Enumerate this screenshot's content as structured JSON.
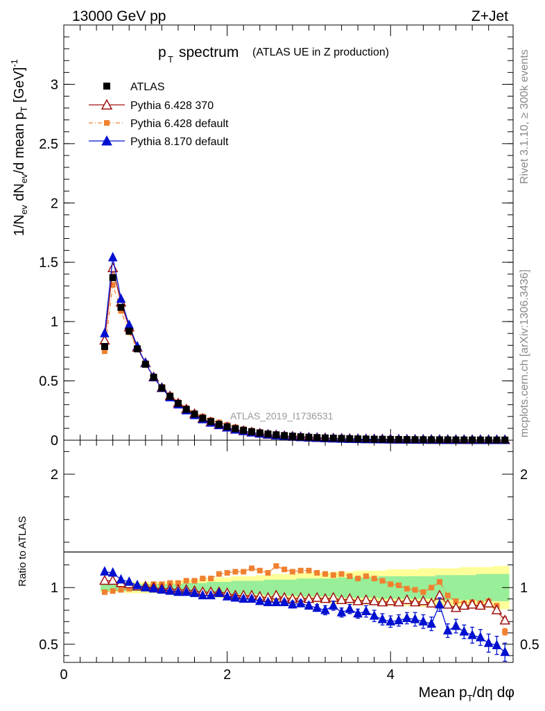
{
  "header": {
    "energy": "13000 GeV pp",
    "process": "Z+Jet"
  },
  "side_texts": {
    "rivet": "Rivet 3.1.10, ≥ 300k events",
    "mcplots": "mcplots.cern.ch [arXiv:1306.3436]"
  },
  "chart_data": [
    {
      "type": "line",
      "panel": "main",
      "title_main": "p",
      "title_sub": "T",
      "title_rest": "spectrum",
      "subtitle": "(ATLAS UE in Z production)",
      "watermark": "ATLAS_2019_I1736531",
      "ylabel": "1/N_ev dN_ev/d mean p_T [GeV]^-1",
      "xlim": [
        0,
        5.5
      ],
      "ylim": [
        0,
        3.5
      ],
      "yticks": [
        "0",
        "0.5",
        "1",
        "1.5",
        "2",
        "2.5",
        "3"
      ],
      "x": [
        0.5,
        0.6,
        0.7,
        0.8,
        0.9,
        1.0,
        1.1,
        1.2,
        1.3,
        1.4,
        1.5,
        1.6,
        1.7,
        1.8,
        1.9,
        2.0,
        2.1,
        2.2,
        2.3,
        2.4,
        2.5,
        2.6,
        2.7,
        2.8,
        2.9,
        3.0,
        3.1,
        3.2,
        3.3,
        3.4,
        3.5,
        3.6,
        3.7,
        3.8,
        3.9,
        4.0,
        4.1,
        4.2,
        4.3,
        4.4,
        4.5,
        4.6,
        4.7,
        4.8,
        4.9,
        5.0,
        5.1,
        5.2,
        5.3,
        5.4
      ],
      "series": [
        {
          "name": "ATLAS",
          "color": "#000000",
          "marker": "square",
          "values": [
            0.79,
            1.37,
            1.12,
            0.92,
            0.77,
            0.64,
            0.53,
            0.44,
            0.37,
            0.31,
            0.26,
            0.22,
            0.185,
            0.157,
            0.133,
            0.113,
            0.097,
            0.083,
            0.071,
            0.061,
            0.052,
            0.045,
            0.039,
            0.034,
            0.029,
            0.025,
            0.022,
            0.019,
            0.017,
            0.015,
            0.013,
            0.011,
            0.0098,
            0.0086,
            0.0076,
            0.0067,
            0.0059,
            0.0052,
            0.0046,
            0.0041,
            0.0036,
            0.0032,
            0.0028,
            0.0025,
            0.0022,
            0.002,
            0.0018,
            0.0016,
            0.0014,
            0.0013
          ]
        },
        {
          "name": "Pythia 6.428 370",
          "color": "#a01010",
          "marker": "triangle-open",
          "values": [
            0.84,
            1.45,
            1.16,
            0.95,
            0.78,
            0.65,
            0.53,
            0.44,
            0.37,
            0.31,
            0.26,
            0.22,
            0.18,
            0.15,
            0.127,
            0.107,
            0.09,
            0.077,
            0.065,
            0.056,
            0.047,
            0.041,
            0.035,
            0.03,
            0.026,
            0.022,
            0.019,
            0.017,
            0.015,
            0.013,
            0.011,
            0.0097,
            0.0085,
            0.0075,
            0.0066,
            0.0058,
            0.0051,
            0.0045,
            0.004,
            0.0036,
            0.0032,
            0.0028,
            0.0025,
            0.0022,
            0.0019,
            0.0017,
            0.0015,
            0.0013,
            0.0012,
            0.0011
          ]
        },
        {
          "name": "Pythia 6.428 default",
          "color": "#f08030",
          "marker": "square-small",
          "dashed": true,
          "values": [
            0.75,
            1.31,
            1.09,
            0.91,
            0.77,
            0.65,
            0.54,
            0.45,
            0.38,
            0.32,
            0.27,
            0.23,
            0.2,
            0.17,
            0.15,
            0.13,
            0.11,
            0.095,
            0.082,
            0.07,
            0.06,
            0.052,
            0.045,
            0.039,
            0.033,
            0.029,
            0.025,
            0.022,
            0.019,
            0.017,
            0.015,
            0.013,
            0.011,
            0.01,
            0.009,
            0.008,
            0.007,
            0.006,
            0.0053,
            0.0047,
            0.0042,
            0.0037,
            0.0033,
            0.0029,
            0.0026,
            0.0023,
            0.002,
            0.0018,
            0.0016,
            0.0014
          ]
        },
        {
          "name": "Pythia 8.170 default",
          "color": "#0010d0",
          "marker": "triangle",
          "values": [
            0.9,
            1.54,
            1.19,
            0.97,
            0.79,
            0.65,
            0.53,
            0.44,
            0.36,
            0.3,
            0.25,
            0.21,
            0.175,
            0.146,
            0.125,
            0.105,
            0.088,
            0.075,
            0.064,
            0.054,
            0.046,
            0.039,
            0.033,
            0.028,
            0.024,
            0.021,
            0.018,
            0.015,
            0.013,
            0.011,
            0.0097,
            0.0085,
            0.0074,
            0.0064,
            0.0055,
            0.0048,
            0.0042,
            0.0037,
            0.0032,
            0.0028,
            0.0024,
            0.0021,
            0.0018,
            0.0016,
            0.0014,
            0.0012,
            0.001,
            0.0009,
            0.0008,
            0.0007
          ]
        }
      ]
    },
    {
      "type": "line",
      "panel": "ratio",
      "ylabel": "Ratio to ATLAS",
      "xlabel": "Mean p_T/dη dφ",
      "xlim": [
        0,
        5.5
      ],
      "ylim": [
        0.34,
        2.3
      ],
      "xticks": [
        "0",
        "2",
        "4"
      ],
      "yticks": [
        "0.5",
        "1",
        "2"
      ],
      "x": [
        0.5,
        0.6,
        0.7,
        0.8,
        0.9,
        1.0,
        1.1,
        1.2,
        1.3,
        1.4,
        1.5,
        1.6,
        1.7,
        1.8,
        1.9,
        2.0,
        2.1,
        2.2,
        2.3,
        2.4,
        2.5,
        2.6,
        2.7,
        2.8,
        2.9,
        3.0,
        3.1,
        3.2,
        3.3,
        3.4,
        3.5,
        3.6,
        3.7,
        3.8,
        3.9,
        4.0,
        4.1,
        4.2,
        4.3,
        4.4,
        4.5,
        4.6,
        4.7,
        4.8,
        4.9,
        5.0,
        5.1,
        5.2,
        5.3,
        5.4
      ],
      "band_inner": [
        0.03,
        0.03,
        0.03,
        0.03,
        0.03,
        0.03,
        0.03,
        0.03,
        0.03,
        0.03,
        0.04,
        0.04,
        0.04,
        0.05,
        0.05,
        0.05,
        0.06,
        0.06,
        0.06,
        0.06,
        0.07,
        0.07,
        0.07,
        0.07,
        0.08,
        0.08,
        0.08,
        0.08,
        0.08,
        0.09,
        0.09,
        0.09,
        0.09,
        0.09,
        0.1,
        0.1,
        0.1,
        0.1,
        0.1,
        0.1,
        0.1,
        0.11,
        0.11,
        0.11,
        0.11,
        0.11,
        0.12,
        0.12,
        0.12,
        0.12
      ],
      "band_outer": [
        0.04,
        0.04,
        0.04,
        0.05,
        0.05,
        0.05,
        0.05,
        0.05,
        0.06,
        0.06,
        0.07,
        0.07,
        0.08,
        0.08,
        0.09,
        0.09,
        0.1,
        0.1,
        0.1,
        0.11,
        0.11,
        0.12,
        0.12,
        0.12,
        0.13,
        0.13,
        0.13,
        0.13,
        0.14,
        0.14,
        0.14,
        0.15,
        0.15,
        0.15,
        0.15,
        0.16,
        0.16,
        0.16,
        0.16,
        0.17,
        0.17,
        0.17,
        0.17,
        0.17,
        0.18,
        0.18,
        0.18,
        0.18,
        0.19,
        0.19
      ],
      "series": [
        {
          "name": "Pythia 6.428 370",
          "color": "#a01010",
          "marker": "triangle-open",
          "values": [
            1.06,
            1.06,
            1.04,
            1.03,
            1.01,
            1.01,
            1.0,
            0.99,
            0.99,
            0.98,
            0.98,
            0.97,
            0.96,
            0.96,
            0.96,
            0.95,
            0.93,
            0.93,
            0.93,
            0.92,
            0.91,
            0.93,
            0.91,
            0.9,
            0.91,
            0.9,
            0.91,
            0.9,
            0.91,
            0.89,
            0.9,
            0.88,
            0.89,
            0.88,
            0.87,
            0.88,
            0.87,
            0.89,
            0.87,
            0.88,
            0.86,
            0.93,
            0.85,
            0.82,
            0.84,
            0.85,
            0.84,
            0.86,
            0.8,
            0.71
          ],
          "errors": [
            0,
            0,
            0,
            0,
            0,
            0,
            0,
            0,
            0,
            0,
            0,
            0,
            0,
            0,
            0,
            0,
            0,
            0,
            0,
            0,
            0,
            0,
            0,
            0,
            0,
            0,
            0,
            0,
            0,
            0,
            0,
            0,
            0,
            0,
            0,
            0,
            0,
            0,
            0,
            0,
            0,
            0,
            0,
            0,
            0,
            0,
            0,
            0,
            0.02,
            0.03
          ]
        },
        {
          "name": "Pythia 6.428 default",
          "color": "#f08030",
          "marker": "square-small",
          "dashed": true,
          "values": [
            0.96,
            0.97,
            0.98,
            0.99,
            1.0,
            1.01,
            1.03,
            1.03,
            1.04,
            1.04,
            1.06,
            1.06,
            1.08,
            1.08,
            1.12,
            1.13,
            1.14,
            1.14,
            1.17,
            1.15,
            1.13,
            1.19,
            1.16,
            1.14,
            1.15,
            1.15,
            1.13,
            1.12,
            1.11,
            1.12,
            1.1,
            1.08,
            1.1,
            1.08,
            1.06,
            1.03,
            1.02,
            0.99,
            0.98,
            0.96,
            1.0,
            1.05,
            0.93,
            0.88,
            0.86,
            0.87,
            0.86,
            0.88,
            0.84,
            0.61
          ],
          "errors": [
            0,
            0,
            0,
            0,
            0,
            0,
            0,
            0,
            0,
            0,
            0,
            0,
            0,
            0,
            0,
            0,
            0,
            0,
            0,
            0,
            0,
            0,
            0,
            0,
            0,
            0,
            0,
            0,
            0,
            0,
            0,
            0,
            0,
            0,
            0,
            0,
            0,
            0,
            0,
            0,
            0,
            0,
            0,
            0,
            0,
            0,
            0,
            0,
            0.02,
            0.03
          ]
        },
        {
          "name": "Pythia 8.170 default",
          "color": "#0010d0",
          "marker": "triangle",
          "values": [
            1.14,
            1.13,
            1.07,
            1.05,
            1.02,
            1.0,
            0.99,
            0.98,
            0.97,
            0.96,
            0.96,
            0.95,
            0.93,
            0.93,
            0.95,
            0.92,
            0.91,
            0.9,
            0.9,
            0.88,
            0.87,
            0.87,
            0.87,
            0.85,
            0.86,
            0.84,
            0.82,
            0.8,
            0.84,
            0.78,
            0.81,
            0.77,
            0.79,
            0.75,
            0.72,
            0.7,
            0.71,
            0.73,
            0.72,
            0.7,
            0.68,
            0.85,
            0.62,
            0.66,
            0.61,
            0.58,
            0.56,
            0.51,
            0.49,
            0.43
          ],
          "errors": [
            0.005,
            0.005,
            0.005,
            0.005,
            0.005,
            0.005,
            0.005,
            0.005,
            0.005,
            0.005,
            0.01,
            0.01,
            0.01,
            0.01,
            0.01,
            0.01,
            0.02,
            0.02,
            0.02,
            0.02,
            0.02,
            0.02,
            0.02,
            0.03,
            0.03,
            0.03,
            0.03,
            0.04,
            0.04,
            0.04,
            0.04,
            0.04,
            0.05,
            0.05,
            0.05,
            0.05,
            0.05,
            0.05,
            0.06,
            0.06,
            0.06,
            0.06,
            0.06,
            0.06,
            0.06,
            0.07,
            0.07,
            0.08,
            0.08,
            0.08
          ]
        }
      ]
    }
  ]
}
